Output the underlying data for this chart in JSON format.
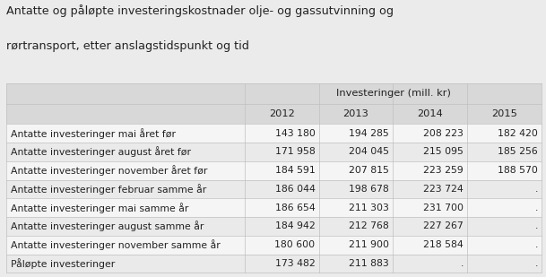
{
  "title_line1": "Antatte og påløpte investeringskostnader olje- og gassutvinning og",
  "title_line2": "rørtransport, etter anslagstidspunkt og tid",
  "col_header_merged": "Investeringer (mill. kr)",
  "col_years": [
    "2012",
    "2013",
    "2014",
    "2015"
  ],
  "row_labels": [
    "Antatte investeringer mai året før",
    "Antatte investeringer august året før",
    "Antatte investeringer november året før",
    "Antatte investeringer februar samme år",
    "Antatte investeringer mai samme år",
    "Antatte investeringer august samme år",
    "Antatte investeringer november samme år",
    "Påløpte investeringer"
  ],
  "table_data": [
    [
      "143 180",
      "194 285",
      "208 223",
      "182 420"
    ],
    [
      "171 958",
      "204 045",
      "215 095",
      "185 256"
    ],
    [
      "184 591",
      "207 815",
      "223 259",
      "188 570"
    ],
    [
      "186 044",
      "198 678",
      "223 724",
      "."
    ],
    [
      "186 654",
      "211 303",
      "231 700",
      "."
    ],
    [
      "184 942",
      "212 768",
      "227 267",
      "."
    ],
    [
      "180 600",
      "211 900",
      "218 584",
      "."
    ],
    [
      "173 482",
      "211 883",
      ".",
      "."
    ]
  ],
  "bg_color": "#ebebeb",
  "header_bg": "#d8d8d8",
  "data_bg_even": "#f5f5f5",
  "data_bg_odd": "#eaeaea",
  "text_color": "#222222",
  "border_color": "#c0c0c0",
  "title_fontsize": 9.2,
  "header_fontsize": 8.2,
  "cell_fontsize": 7.8,
  "fig_width": 6.09,
  "fig_height": 3.09
}
